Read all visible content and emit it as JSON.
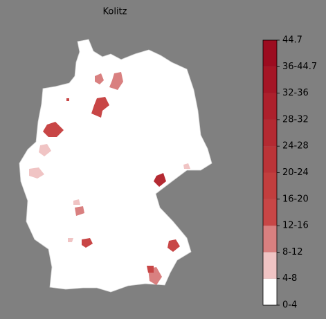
{
  "title": "Kolitz",
  "colorbar": {
    "tick_labels": [
      "0-4",
      "4-8",
      "8-12",
      "12-16",
      "16-20",
      "20-24",
      "24-28",
      "28-32",
      "32-36",
      "36-44.7",
      "44.7"
    ],
    "colors": [
      "#ffffff",
      "#f0c4c4",
      "#d98080",
      "#c84646",
      "#c23e3e",
      "#bb3438",
      "#b42a32",
      "#ad202c",
      "#a51626",
      "#9c0c20"
    ]
  }
}
